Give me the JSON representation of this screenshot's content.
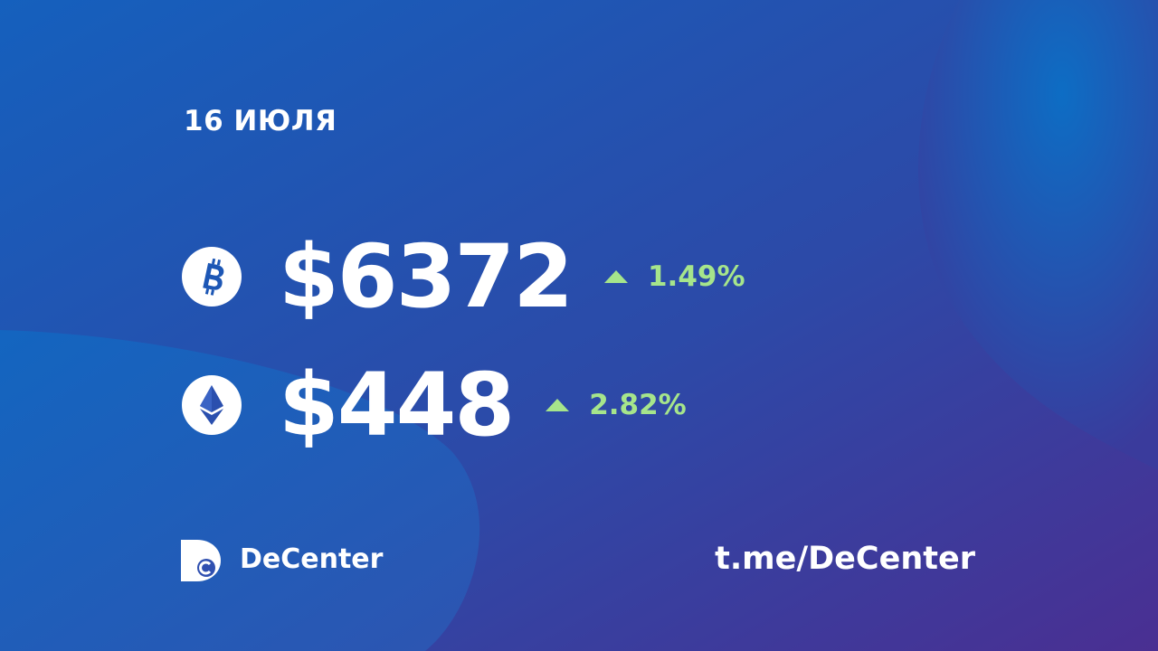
{
  "date": "16 ИЮЛЯ",
  "rows": [
    {
      "price": "$6372",
      "change": "1.49%"
    },
    {
      "price": "$448",
      "change": "2.82%"
    }
  ],
  "brand": "DeCenter",
  "link": "t.me/DeCenter"
}
